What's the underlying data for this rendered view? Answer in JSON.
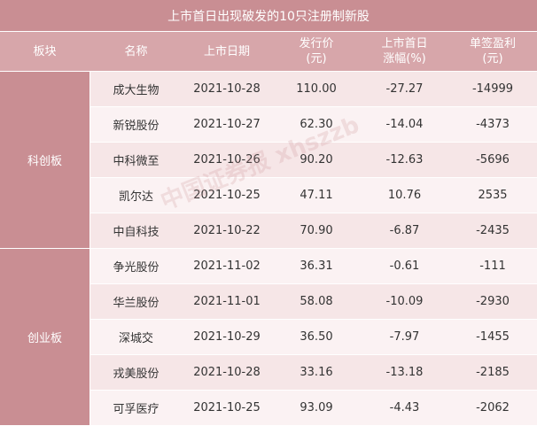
{
  "title": "上市首日出现破发的10只注册制新股",
  "headers": [
    {
      "line1": "板块",
      "line2": ""
    },
    {
      "line1": "名称",
      "line2": ""
    },
    {
      "line1": "上市日期",
      "line2": ""
    },
    {
      "line1": "发行价",
      "line2": "(元)"
    },
    {
      "line1": "上市首日",
      "line2": "涨幅(%)"
    },
    {
      "line1": "单签盈利",
      "line2": "(元)"
    }
  ],
  "groups": [
    {
      "label": "科创板",
      "rows": [
        {
          "name": "成大生物",
          "date": "2021-10-28",
          "price": "110.00",
          "change": "-27.27",
          "profit": "-14999"
        },
        {
          "name": "新锐股份",
          "date": "2021-10-27",
          "price": "62.30",
          "change": "-14.04",
          "profit": "-4373"
        },
        {
          "name": "中科微至",
          "date": "2021-10-26",
          "price": "90.20",
          "change": "-12.63",
          "profit": "-5696"
        },
        {
          "name": "凯尔达",
          "date": "2021-10-25",
          "price": "47.11",
          "change": "10.76",
          "profit": "2535"
        },
        {
          "name": "中自科技",
          "date": "2021-10-22",
          "price": "70.90",
          "change": "-6.87",
          "profit": "-2435"
        }
      ]
    },
    {
      "label": "创业板",
      "rows": [
        {
          "name": "争光股份",
          "date": "2021-11-02",
          "price": "36.31",
          "change": "-0.61",
          "profit": "-111"
        },
        {
          "name": "华兰股份",
          "date": "2021-11-01",
          "price": "58.08",
          "change": "-10.09",
          "profit": "-2930"
        },
        {
          "name": "深城交",
          "date": "2021-10-29",
          "price": "36.50",
          "change": "-7.97",
          "profit": "-1455"
        },
        {
          "name": "戎美股份",
          "date": "2021-10-28",
          "price": "33.16",
          "change": "-13.18",
          "profit": "-2185"
        },
        {
          "name": "可孚医疗",
          "date": "2021-10-25",
          "price": "93.09",
          "change": "-4.43",
          "profit": "-2062"
        }
      ]
    }
  ],
  "watermark": "中国证券报 xhszzb"
}
